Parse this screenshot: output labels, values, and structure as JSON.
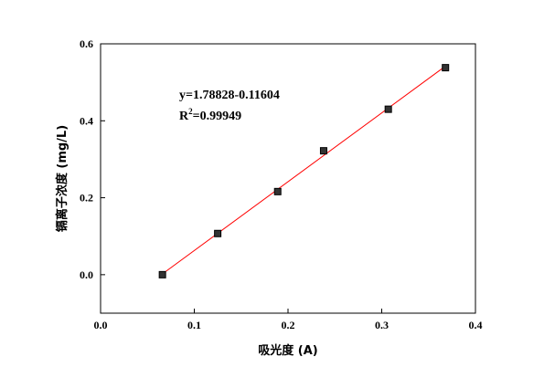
{
  "chart_data": {
    "type": "scatter",
    "xlabel": "吸光度 (A)",
    "ylabel": "镉离子浓度 (mg/L)",
    "xlim": [
      0.0,
      0.4
    ],
    "ylim": [
      -0.1,
      0.6
    ],
    "xticks": [
      "0.0",
      "0.1",
      "0.2",
      "0.3",
      "0.4"
    ],
    "yticks": [
      "0.0",
      "0.2",
      "0.4",
      "0.6"
    ],
    "xtick_values": [
      0.0,
      0.1,
      0.2,
      0.3,
      0.4
    ],
    "ytick_values": [
      0.0,
      0.2,
      0.4,
      0.6
    ],
    "grid": false,
    "points": [
      {
        "x": 0.066,
        "y": 0.0
      },
      {
        "x": 0.125,
        "y": 0.107
      },
      {
        "x": 0.189,
        "y": 0.216
      },
      {
        "x": 0.238,
        "y": 0.322
      },
      {
        "x": 0.307,
        "y": 0.43
      },
      {
        "x": 0.368,
        "y": 0.538
      }
    ],
    "fit": {
      "x_range": [
        0.066,
        0.368
      ],
      "slope": 1.78828,
      "intercept": -0.11604,
      "color": "#ff0000"
    },
    "annotation": {
      "equation": "y=1.78828-0.11604",
      "r2_prefix": "R",
      "r2_sup": "2",
      "r2_value": "=0.99949"
    },
    "marker_color": "#000000",
    "marker_fill": "#333333"
  }
}
